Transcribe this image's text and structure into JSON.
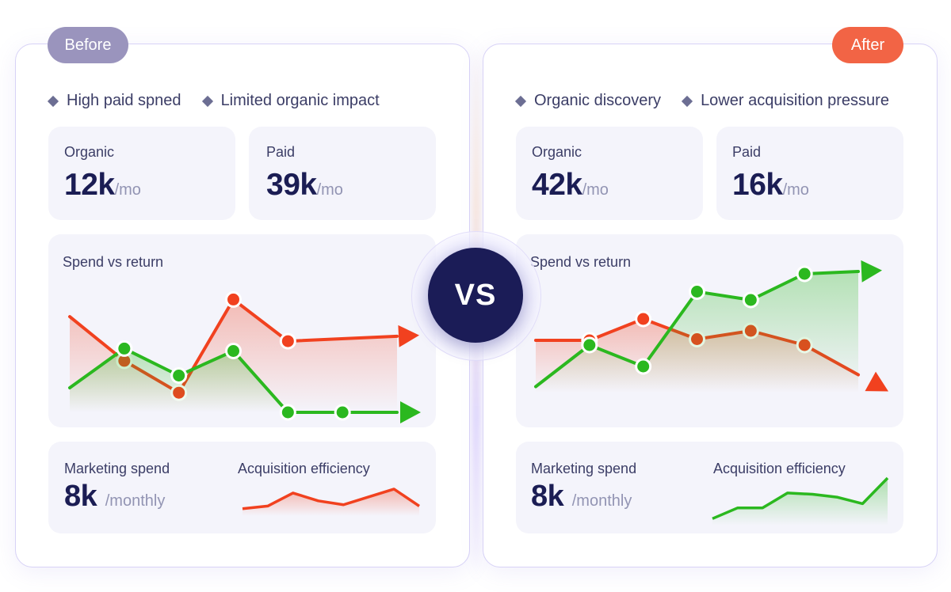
{
  "colors": {
    "green": "#2bb81f",
    "red": "#f1411f",
    "navy": "#1b1c57",
    "before_tag": "#9a94bd",
    "after_tag": "#f26445"
  },
  "vs_label": "VS",
  "before": {
    "tag": "Before",
    "bullets": [
      "High paid spned",
      "Limited organic impact"
    ],
    "organic": {
      "label": "Organic",
      "value": "12k",
      "unit": "/mo"
    },
    "paid": {
      "label": "Paid",
      "value": "39k",
      "unit": "/mo"
    },
    "spend_title": "Spend vs return",
    "marketing": {
      "label": "Marketing spend",
      "value": "8k",
      "unit": "/monthly"
    },
    "efficiency_title": "Acquisition efficiency"
  },
  "after": {
    "tag": "After",
    "bullets": [
      "Organic discovery",
      "Lower acquisition pressure"
    ],
    "organic": {
      "label": "Organic",
      "value": "42k",
      "unit": "/mo"
    },
    "paid": {
      "label": "Paid",
      "value": "16k",
      "unit": "/mo"
    },
    "spend_title": "Spend vs return",
    "marketing": {
      "label": "Marketing spend",
      "value": "8k",
      "unit": "/monthly"
    },
    "efficiency_title": "Acquisition efficiency"
  },
  "chart_data": [
    {
      "type": "line",
      "title": "Spend vs return",
      "panel": "before",
      "x": [
        0,
        1,
        2,
        3,
        4,
        5,
        6
      ],
      "ylim": [
        0,
        100
      ],
      "series": [
        {
          "color": "#f1411f",
          "values": [
            78,
            42,
            16,
            92,
            58,
            null,
            62
          ],
          "markers": [
            2,
            3,
            4
          ]
        },
        {
          "color": "#2bb81f",
          "values": [
            20,
            52,
            30,
            50,
            0,
            0,
            0
          ]
        }
      ]
    },
    {
      "type": "line",
      "title": "Spend vs return",
      "panel": "after",
      "ylim": [
        0,
        100
      ],
      "series": [
        {
          "color": "#f1411f",
          "values": [
            44,
            44,
            62,
            45,
            52,
            40,
            15
          ]
        },
        {
          "color": "#2bb81f",
          "values": [
            5,
            40,
            22,
            85,
            78,
            100,
            102
          ]
        }
      ]
    },
    {
      "type": "area",
      "title": "Acquisition efficiency",
      "panel": "before",
      "series": [
        {
          "color": "#f1411f",
          "values": [
            10,
            20,
            70,
            40,
            25,
            55,
            85,
            20
          ]
        }
      ]
    },
    {
      "type": "area",
      "title": "Acquisition efficiency",
      "panel": "after",
      "series": [
        {
          "color": "#2bb81f",
          "values": [
            5,
            30,
            30,
            65,
            62,
            55,
            40,
            100
          ]
        }
      ]
    }
  ]
}
